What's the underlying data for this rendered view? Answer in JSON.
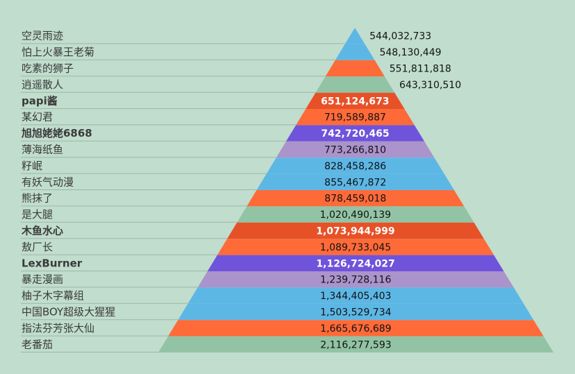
{
  "colors": {
    "background": "#c0ddcd",
    "palette": [
      "#5db7e5",
      "#ff6a39",
      "#92c3a5",
      "#e75128",
      "#6f53db",
      "#ab93cb"
    ]
  },
  "chart_data": {
    "type": "bar",
    "subtype": "pyramid",
    "categories": [
      "空灵雨迹",
      "怕上火暴王老菊",
      "吃素的狮子",
      "逍遥散人",
      "papi酱",
      "某幻君",
      "旭旭姥姥6868",
      "薄海纸鱼",
      "籽岷",
      "有妖气动漫",
      "熊抹了",
      "是大腿",
      "木鱼水心",
      "敖厂长",
      "LexBurner",
      "暴走漫画",
      "柚子木字幕组",
      "中国BOY超级大猩猩",
      "指法芬芳张大仙",
      "老番茄"
    ],
    "values": [
      544032733,
      548130449,
      551811818,
      643310510,
      651124673,
      719589887,
      742720465,
      773266810,
      828458286,
      855467872,
      878459018,
      1020490139,
      1073944999,
      1089733045,
      1126724027,
      1239728116,
      1344405403,
      1503529734,
      1665676689,
      2116277593
    ],
    "value_labels": [
      "544,032,733",
      "548,130,449",
      "551,811,818",
      "643,310,510",
      "651,124,673",
      "719,589,887",
      "742,720,465",
      "773,266,810",
      "828,458,286",
      "855,467,872",
      "878,459,018",
      "1,020,490,139",
      "1,073,944,999",
      "1,089,733,045",
      "1,126,724,027",
      "1,239,728,116",
      "1,344,405,403",
      "1,503,529,734",
      "1,665,676,689",
      "2,116,277,593"
    ],
    "bar_colors": [
      "#5db7e5",
      "#5db7e5",
      "#ff6a39",
      "#92c3a5",
      "#e75128",
      "#ff6a39",
      "#6f53db",
      "#ab93cb",
      "#5db7e5",
      "#5db7e5",
      "#ff6a39",
      "#92c3a5",
      "#e75128",
      "#ff6a39",
      "#6f53db",
      "#ab93cb",
      "#5db7e5",
      "#5db7e5",
      "#ff6a39",
      "#92c3a5"
    ],
    "bold_labels": [
      false,
      false,
      false,
      false,
      true,
      false,
      true,
      false,
      false,
      false,
      false,
      false,
      true,
      false,
      true,
      false,
      false,
      false,
      false,
      false
    ],
    "bold_values": [
      false,
      false,
      false,
      false,
      true,
      false,
      true,
      false,
      false,
      false,
      false,
      false,
      true,
      false,
      true,
      false,
      false,
      false,
      false,
      false
    ],
    "outside_value_labels": [
      true,
      true,
      true,
      true,
      false,
      false,
      false,
      false,
      false,
      false,
      false,
      false,
      false,
      false,
      false,
      false,
      false,
      false,
      false,
      false
    ],
    "title": "",
    "legend": "none"
  }
}
